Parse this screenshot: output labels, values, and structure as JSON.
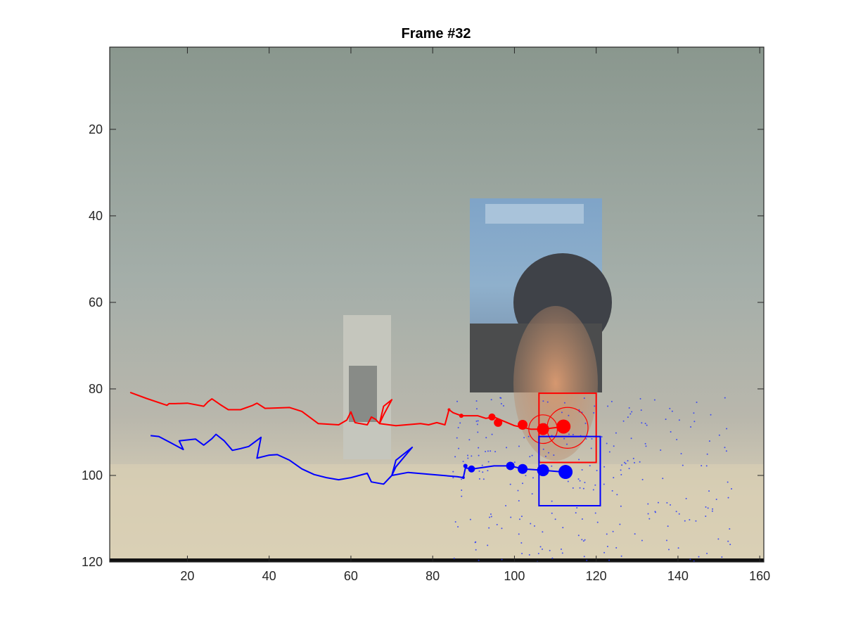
{
  "chart_data": {
    "type": "image-overlay",
    "title": "Frame #32",
    "xlim": [
      1,
      161
    ],
    "ylim": [
      1,
      120
    ],
    "y_reversed": true,
    "xticks": [
      20,
      40,
      60,
      80,
      100,
      120,
      140,
      160
    ],
    "yticks": [
      20,
      40,
      60,
      80,
      100,
      120
    ],
    "series": [
      {
        "color": "#ff0000",
        "trajectory": [
          [
            6,
            80.8
          ],
          [
            10,
            82.2
          ],
          [
            15,
            83.8
          ],
          [
            15.5,
            83.4
          ],
          [
            17,
            83.4
          ],
          [
            20,
            83.3
          ],
          [
            24,
            84
          ],
          [
            25,
            83
          ],
          [
            26,
            82.3
          ],
          [
            28,
            83.6
          ],
          [
            30,
            84.8
          ],
          [
            33,
            84.8
          ],
          [
            36,
            83.8
          ],
          [
            37,
            83.3
          ],
          [
            39,
            84.5
          ],
          [
            45,
            84.3
          ],
          [
            48,
            85.2
          ],
          [
            52,
            88
          ],
          [
            57,
            88.3
          ],
          [
            59,
            87.2
          ],
          [
            60,
            85.3
          ],
          [
            61,
            87.8
          ],
          [
            64,
            88.3
          ],
          [
            65,
            86.5
          ],
          [
            66,
            87
          ],
          [
            67,
            88
          ],
          [
            68,
            84
          ],
          [
            70,
            82.5
          ],
          [
            68,
            86
          ],
          [
            67,
            88
          ],
          [
            71,
            88.5
          ],
          [
            77,
            88
          ],
          [
            79,
            88.3
          ],
          [
            81,
            87.8
          ],
          [
            83,
            88.3
          ],
          [
            84,
            84.8
          ],
          [
            85,
            85.5
          ],
          [
            87,
            86.2
          ],
          [
            91,
            86.2
          ],
          [
            93,
            86.8
          ],
          [
            95,
            86.5
          ],
          [
            97,
            87.3
          ],
          [
            100,
            88.5
          ],
          [
            104,
            89.3
          ],
          [
            107,
            89.3
          ],
          [
            112,
            88.7
          ]
        ],
        "markers": [
          [
            84,
            84.8,
            2
          ],
          [
            87,
            86.2,
            3
          ],
          [
            94.5,
            86.5,
            5
          ],
          [
            96,
            87.8,
            6
          ],
          [
            102,
            88.3,
            7
          ],
          [
            107,
            89.3,
            8.5
          ],
          [
            112,
            88.7,
            10
          ]
        ],
        "box": {
          "x0": 106,
          "y0": 81,
          "x1": 120,
          "y1": 97
        },
        "circles": [
          {
            "cx": 107,
            "cy": 89.3,
            "r": 3.5
          },
          {
            "cx": 113,
            "cy": 89,
            "r": 5
          }
        ]
      },
      {
        "color": "#0000ff",
        "trajectory": [
          [
            11,
            90.8
          ],
          [
            13,
            91
          ],
          [
            16,
            92.5
          ],
          [
            19,
            94
          ],
          [
            18,
            92
          ],
          [
            20,
            91.8
          ],
          [
            22,
            91.6
          ],
          [
            24,
            93
          ],
          [
            26,
            91.5
          ],
          [
            27,
            90.5
          ],
          [
            29,
            92
          ],
          [
            31,
            94.2
          ],
          [
            33,
            93.8
          ],
          [
            35,
            93.3
          ],
          [
            38,
            91.2
          ],
          [
            37,
            96
          ],
          [
            40,
            95.3
          ],
          [
            42,
            95.2
          ],
          [
            45,
            96.5
          ],
          [
            48,
            98.5
          ],
          [
            51,
            99.8
          ],
          [
            54,
            100.5
          ],
          [
            57,
            101
          ],
          [
            60,
            100.5
          ],
          [
            64,
            99.5
          ],
          [
            65,
            101.5
          ],
          [
            68,
            102
          ],
          [
            70,
            100
          ],
          [
            71,
            96.5
          ],
          [
            75,
            93.5
          ],
          [
            71,
            98
          ],
          [
            70,
            100
          ],
          [
            74,
            99.3
          ],
          [
            80,
            99.8
          ],
          [
            86,
            100.3
          ],
          [
            87.5,
            100.5
          ],
          [
            88,
            98.3
          ],
          [
            88.5,
            98.3
          ],
          [
            89,
            98.6
          ],
          [
            95,
            97.8
          ],
          [
            99,
            97.8
          ],
          [
            102,
            98.5
          ],
          [
            107,
            98.8
          ],
          [
            112,
            99.2
          ]
        ],
        "markers": [
          [
            87.5,
            100.5,
            2
          ],
          [
            88,
            97.8,
            3
          ],
          [
            89.5,
            98.5,
            5
          ],
          [
            99,
            97.8,
            6
          ],
          [
            102,
            98.5,
            7
          ],
          [
            107,
            98.8,
            8.5
          ],
          [
            112.5,
            99.2,
            10
          ]
        ],
        "box": {
          "x0": 106,
          "y0": 91,
          "x1": 121,
          "y1": 107
        },
        "circles": []
      }
    ]
  }
}
